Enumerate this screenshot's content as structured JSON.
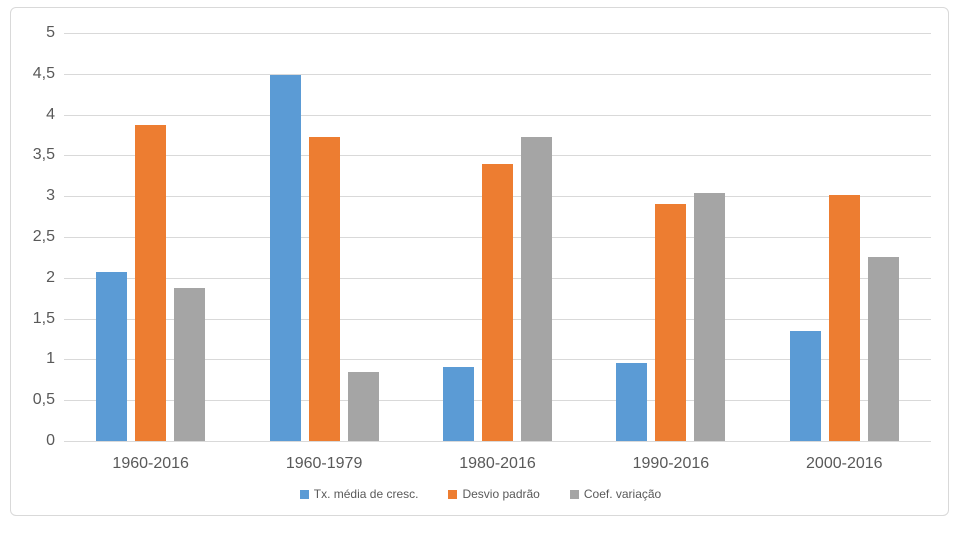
{
  "chart_data": {
    "type": "bar",
    "title": "",
    "xlabel": "",
    "ylabel": "",
    "categories": [
      "1960-2016",
      "1960-1979",
      "1980-2016",
      "1990-2016",
      "2000-2016"
    ],
    "series": [
      {
        "name": "Tx. média de cresc.",
        "color": "#5B9BD5",
        "values": [
          2.07,
          4.48,
          0.91,
          0.96,
          1.35
        ]
      },
      {
        "name": "Desvio padrão",
        "color": "#ED7D31",
        "values": [
          3.87,
          3.73,
          3.39,
          2.9,
          3.02
        ]
      },
      {
        "name": "Coef. variação",
        "color": "#A5A5A5",
        "values": [
          1.88,
          0.84,
          3.72,
          3.04,
          2.26
        ]
      }
    ],
    "ylim": [
      0,
      5
    ],
    "ytick_step": 0.5,
    "ytick_labels": [
      "0",
      "0,5",
      "1",
      "1,5",
      "2",
      "2,5",
      "3",
      "3,5",
      "4",
      "4,5",
      "5"
    ],
    "grid": true,
    "legend_position": "bottom",
    "decimal_separator": ","
  },
  "colors": {
    "axis_text": "#595959",
    "gridline": "#d9d9d9",
    "frame_border": "#d9d9d9",
    "background": "#ffffff"
  }
}
